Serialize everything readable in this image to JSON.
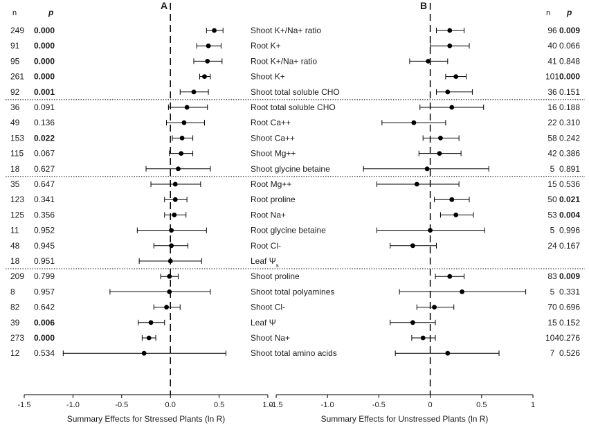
{
  "chart_data": [
    {
      "type": "scatter",
      "panel": "A",
      "xlabel": "Summary Effects for Stressed Plants (ln R)",
      "xlim": [
        -1.5,
        1.0
      ],
      "xticks": [
        "-1.5",
        "-1.0",
        "-0.5",
        "0.0",
        "0.5",
        "1.0"
      ],
      "col_n": "n",
      "col_p": "p",
      "rows": [
        {
          "label": "Shoot K+/Na+ ratio",
          "n": "249",
          "p": "0.000",
          "bold": true,
          "est": 0.45,
          "lo": 0.37,
          "hi": 0.54
        },
        {
          "label": "Root K+",
          "n": "91",
          "p": "0.000",
          "bold": true,
          "est": 0.39,
          "lo": 0.27,
          "hi": 0.52
        },
        {
          "label": "Root K+/Na+ ratio",
          "n": "95",
          "p": "0.000",
          "bold": true,
          "est": 0.38,
          "lo": 0.24,
          "hi": 0.53
        },
        {
          "label": "Shoot K+",
          "n": "261",
          "p": "0.000",
          "bold": true,
          "est": 0.35,
          "lo": 0.3,
          "hi": 0.41
        },
        {
          "label": "Shoot total soluble CHO",
          "n": "92",
          "p": "0.001",
          "bold": true,
          "est": 0.24,
          "lo": 0.1,
          "hi": 0.39
        },
        {
          "label": "Root total soluble CHO",
          "n": "36",
          "p": "0.091",
          "bold": false,
          "est": 0.17,
          "lo": -0.02,
          "hi": 0.38
        },
        {
          "label": "Root Ca++",
          "n": "49",
          "p": "0.136",
          "bold": false,
          "est": 0.14,
          "lo": -0.04,
          "hi": 0.35
        },
        {
          "label": "Shoot Ca++",
          "n": "153",
          "p": "0.022",
          "bold": true,
          "est": 0.12,
          "lo": 0.02,
          "hi": 0.23
        },
        {
          "label": "Shoot Mg++",
          "n": "115",
          "p": "0.067",
          "bold": false,
          "est": 0.11,
          "lo": -0.01,
          "hi": 0.23
        },
        {
          "label": "Shoot glycine betaine",
          "n": "18",
          "p": "0.627",
          "bold": false,
          "est": 0.08,
          "lo": -0.25,
          "hi": 0.41
        },
        {
          "label": "Root Mg++",
          "n": "35",
          "p": "0.647",
          "bold": false,
          "est": 0.05,
          "lo": -0.2,
          "hi": 0.31
        },
        {
          "label": "Root proline",
          "n": "123",
          "p": "0.341",
          "bold": false,
          "est": 0.05,
          "lo": -0.06,
          "hi": 0.17
        },
        {
          "label": "Root Na+",
          "n": "125",
          "p": "0.356",
          "bold": false,
          "est": 0.04,
          "lo": -0.06,
          "hi": 0.16
        },
        {
          "label": "Root glycine betaine",
          "n": "11",
          "p": "0.952",
          "bold": false,
          "est": 0.01,
          "lo": -0.34,
          "hi": 0.37
        },
        {
          "label": "Root Cl-",
          "n": "48",
          "p": "0.945",
          "bold": false,
          "est": 0.01,
          "lo": -0.17,
          "hi": 0.18
        },
        {
          "label": "Leaf Ψs",
          "n": "18",
          "p": "0.951",
          "bold": false,
          "est": 0.0,
          "lo": -0.32,
          "hi": 0.32
        },
        {
          "label": "Shoot proline",
          "n": "209",
          "p": "0.799",
          "bold": false,
          "est": -0.01,
          "lo": -0.1,
          "hi": 0.08
        },
        {
          "label": "Shoot total polyamines",
          "n": "8",
          "p": "0.957",
          "bold": false,
          "est": -0.01,
          "lo": -0.62,
          "hi": 0.41
        },
        {
          "label": "Shoot Cl-",
          "n": "82",
          "p": "0.642",
          "bold": false,
          "est": -0.04,
          "lo": -0.17,
          "hi": 0.1
        },
        {
          "label": "Leaf Ψ",
          "n": "39",
          "p": "0.006",
          "bold": true,
          "est": -0.2,
          "lo": -0.33,
          "hi": -0.06
        },
        {
          "label": "Shoot Na+",
          "n": "273",
          "p": "0.000",
          "bold": true,
          "est": -0.22,
          "lo": -0.29,
          "hi": -0.15
        },
        {
          "label": "Shoot total amino acids",
          "n": "12",
          "p": "0.534",
          "bold": false,
          "est": -0.27,
          "lo": -1.1,
          "hi": 0.57
        }
      ]
    },
    {
      "type": "scatter",
      "panel": "B",
      "xlabel": "Summary Effects for Unstressed Plants (ln R)",
      "xlim": [
        -1.5,
        1.0
      ],
      "xticks": [
        "-1.5",
        "-1.0",
        "-0.5",
        "0",
        "0.5",
        "1"
      ],
      "col_n": "n",
      "col_p": "p",
      "rows": [
        {
          "n": "96",
          "p": "0.009",
          "bold": true,
          "est": 0.19,
          "lo": 0.06,
          "hi": 0.33
        },
        {
          "n": "40",
          "p": "0.066",
          "bold": false,
          "est": 0.19,
          "lo": 0.0,
          "hi": 0.38
        },
        {
          "n": "41",
          "p": "0.848",
          "bold": false,
          "est": -0.02,
          "lo": -0.2,
          "hi": 0.17
        },
        {
          "n": "101",
          "p": "0.000",
          "bold": true,
          "est": 0.25,
          "lo": 0.15,
          "hi": 0.35
        },
        {
          "n": "36",
          "p": "0.151",
          "bold": false,
          "est": 0.17,
          "lo": 0.06,
          "hi": 0.41
        },
        {
          "n": "16",
          "p": "0.188",
          "bold": false,
          "est": 0.21,
          "lo": -0.1,
          "hi": 0.52
        },
        {
          "n": "22",
          "p": "0.310",
          "bold": false,
          "est": -0.16,
          "lo": -0.47,
          "hi": 0.15
        },
        {
          "n": "58",
          "p": "0.242",
          "bold": false,
          "est": 0.1,
          "lo": -0.07,
          "hi": 0.28
        },
        {
          "n": "42",
          "p": "0.386",
          "bold": false,
          "est": 0.09,
          "lo": -0.11,
          "hi": 0.3
        },
        {
          "n": "5",
          "p": "0.891",
          "bold": false,
          "est": -0.03,
          "lo": -0.65,
          "hi": 0.57
        },
        {
          "n": "15",
          "p": "0.536",
          "bold": false,
          "est": -0.13,
          "lo": -0.52,
          "hi": 0.28
        },
        {
          "n": "50",
          "p": "0.021",
          "bold": true,
          "est": 0.21,
          "lo": 0.04,
          "hi": 0.38
        },
        {
          "n": "53",
          "p": "0.004",
          "bold": true,
          "est": 0.25,
          "lo": 0.1,
          "hi": 0.42
        },
        {
          "n": "5",
          "p": "0.996",
          "bold": false,
          "est": 0.0,
          "lo": -0.52,
          "hi": 0.53
        },
        {
          "n": "24",
          "p": "0.167",
          "bold": false,
          "est": -0.17,
          "lo": -0.39,
          "hi": 0.06
        },
        {
          "n": "",
          "p": "",
          "bold": false,
          "est": null,
          "lo": null,
          "hi": null
        },
        {
          "n": "83",
          "p": "0.009",
          "bold": true,
          "est": 0.19,
          "lo": 0.05,
          "hi": 0.33
        },
        {
          "n": "5",
          "p": "0.331",
          "bold": false,
          "est": 0.31,
          "lo": -0.3,
          "hi": 0.93
        },
        {
          "n": "70",
          "p": "0.696",
          "bold": false,
          "est": 0.04,
          "lo": -0.13,
          "hi": 0.23
        },
        {
          "n": "15",
          "p": "0.152",
          "bold": false,
          "est": -0.17,
          "lo": -0.39,
          "hi": 0.05
        },
        {
          "n": "104",
          "p": "0.276",
          "bold": false,
          "est": -0.07,
          "lo": -0.18,
          "hi": 0.05
        },
        {
          "n": "7",
          "p": "0.526",
          "bold": false,
          "est": 0.17,
          "lo": -0.34,
          "hi": 0.67
        }
      ]
    }
  ]
}
